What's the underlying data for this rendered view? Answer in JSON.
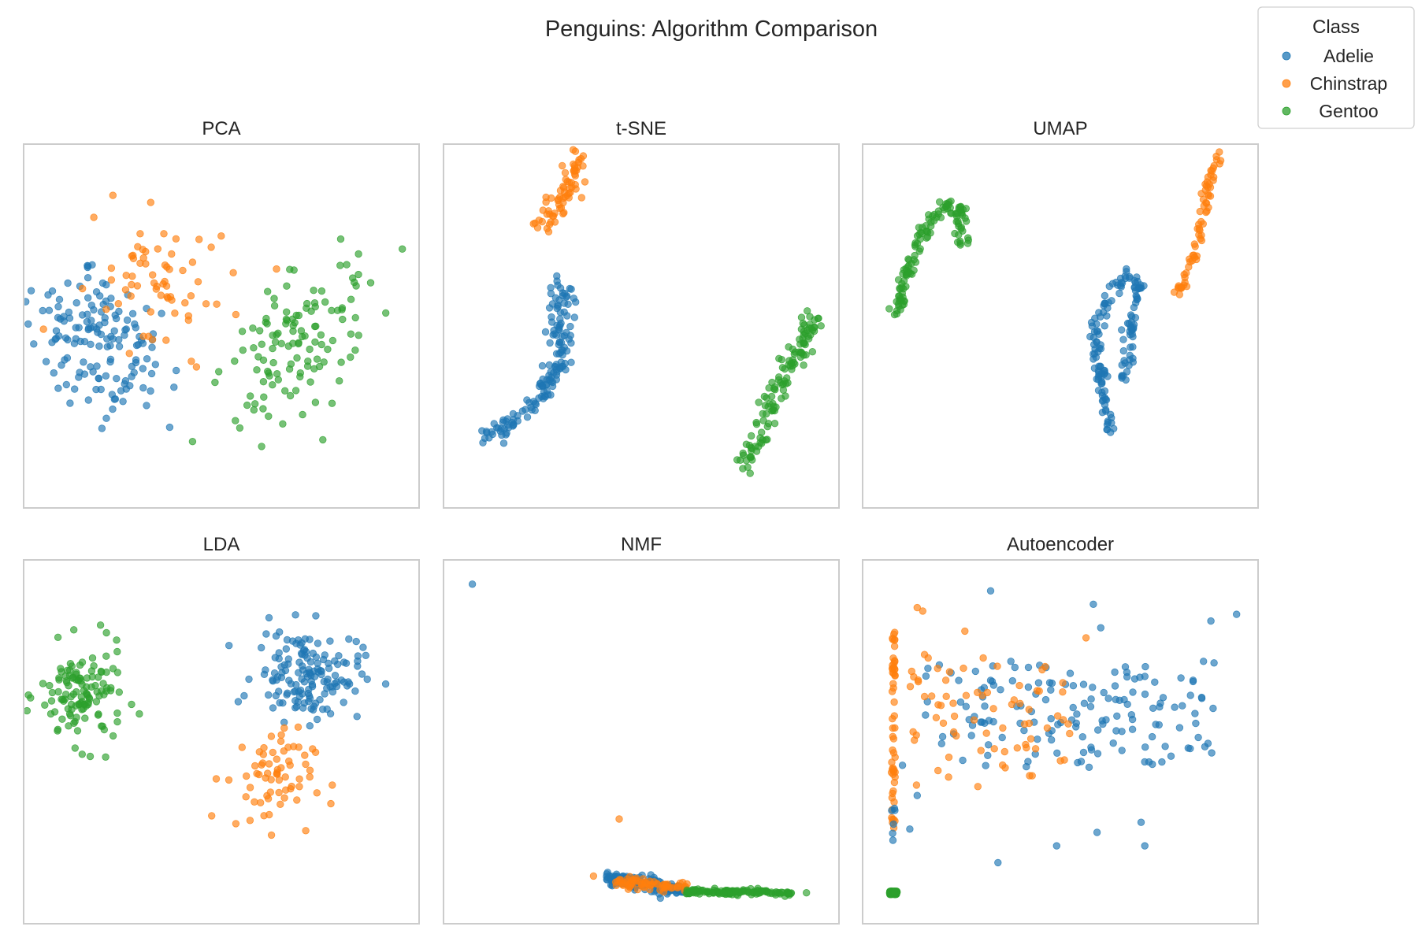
{
  "figure": {
    "title": "Penguins: Algorithm Comparison"
  },
  "legend": {
    "title": "Class",
    "placement": "top-right",
    "entries": [
      {
        "label": "Adelie",
        "color": "#1f77b4"
      },
      {
        "label": "Chinstrap",
        "color": "#ff7f0e"
      },
      {
        "label": "Gentoo",
        "color": "#2ca02c"
      }
    ]
  },
  "chart_data": [
    {
      "type": "scatter",
      "title": "PCA",
      "ticks": false,
      "grid": false,
      "xlim": [
        -3.2,
        3.4
      ],
      "ylim": [
        -3.0,
        3.0
      ],
      "clusters": [
        {
          "series": "Adelie",
          "n": 150,
          "center": [
            -2.1,
            -0.3
          ],
          "spread": [
            0.55,
            0.75
          ],
          "rotate": 45
        },
        {
          "series": "Chinstrap",
          "n": 68,
          "center": [
            -1.05,
            0.85
          ],
          "spread": [
            0.6,
            0.7
          ],
          "rotate": 45
        },
        {
          "series": "Gentoo",
          "n": 124,
          "center": [
            1.5,
            -0.3
          ],
          "spread": [
            0.9,
            0.45
          ],
          "rotate": 45
        }
      ]
    },
    {
      "type": "scatter",
      "title": "t-SNE",
      "ticks": false,
      "grid": false,
      "xlim": [
        -40,
        40
      ],
      "ylim": [
        -40,
        40
      ],
      "paths": [
        {
          "series": "Adelie",
          "n": 150,
          "width": 2.6,
          "points": [
            [
              -34,
              -27
            ],
            [
              -28,
              -23
            ],
            [
              -25,
              -20
            ],
            [
              -20,
              -13
            ],
            [
              -17,
              -8
            ],
            [
              -17,
              -4
            ],
            [
              -18,
              2
            ],
            [
              -17,
              7
            ],
            [
              -18,
              11
            ]
          ]
        },
        {
          "series": "Chinstrap",
          "n": 68,
          "width": 2.2,
          "points": [
            [
              -22,
              23
            ],
            [
              -19,
              28
            ],
            [
              -16,
              32
            ],
            [
              -15,
              36
            ],
            [
              -13,
              40
            ]
          ]
        },
        {
          "series": "Gentoo",
          "n": 124,
          "width": 2.6,
          "points": [
            [
              22,
              -33
            ],
            [
              26,
              -27
            ],
            [
              28,
              -18
            ],
            [
              33,
              -8
            ],
            [
              37,
              -1
            ],
            [
              38,
              4
            ]
          ]
        }
      ]
    },
    {
      "type": "scatter",
      "title": "UMAP",
      "ticks": false,
      "grid": false,
      "xlim": [
        -5,
        20
      ],
      "ylim": [
        -2,
        16
      ],
      "paths": [
        {
          "series": "Gentoo",
          "n": 124,
          "width": 0.45,
          "points": [
            [
              -3.8,
              7.3
            ],
            [
              -3.1,
              9.4
            ],
            [
              -2.4,
              11.3
            ],
            [
              -1.4,
              12.5
            ],
            [
              -0.2,
              13.4
            ],
            [
              0.8,
              13.0
            ],
            [
              0.7,
              11.4
            ]
          ]
        },
        {
          "series": "Adelie",
          "n": 150,
          "width": 0.4,
          "points": [
            [
              10.8,
              1.2
            ],
            [
              10.6,
              3.0
            ],
            [
              10.2,
              4.5
            ],
            [
              9.8,
              6.6
            ],
            [
              10.6,
              8.1
            ],
            [
              12.0,
              9.8
            ],
            [
              13.0,
              9.1
            ],
            [
              12.2,
              6.5
            ],
            [
              11.8,
              4.0
            ]
          ]
        },
        {
          "series": "Chinstrap",
          "n": 68,
          "width": 0.35,
          "points": [
            [
              15.3,
              8.7
            ],
            [
              16.3,
              10.2
            ],
            [
              17.3,
              12.8
            ],
            [
              17.6,
              14.8
            ],
            [
              18.4,
              16.3
            ]
          ]
        }
      ]
    },
    {
      "type": "scatter",
      "title": "LDA",
      "ticks": false,
      "grid": false,
      "xlim": [
        -7,
        7
      ],
      "ylim": [
        -6,
        5
      ],
      "clusters": [
        {
          "series": "Gentoo",
          "n": 124,
          "center": [
            -5.3,
            1.0
          ],
          "spread": [
            0.8,
            0.8
          ],
          "rotate": 0
        },
        {
          "series": "Adelie",
          "n": 150,
          "center": [
            3.3,
            1.7
          ],
          "spread": [
            1.0,
            0.75
          ],
          "rotate": 0
        },
        {
          "series": "Chinstrap",
          "n": 68,
          "center": [
            1.8,
            -1.7
          ],
          "spread": [
            0.85,
            0.8
          ],
          "rotate": 0
        }
      ]
    },
    {
      "type": "scatter",
      "title": "NMF",
      "ticks": false,
      "grid": false,
      "xlim": [
        0,
        1
      ],
      "ylim": [
        0,
        1
      ],
      "outliers": [
        {
          "series": "Adelie",
          "x": 0.04,
          "y": 0.97
        },
        {
          "series": "Chinstrap",
          "x": 0.44,
          "y": 0.27
        },
        {
          "series": "Chinstrap",
          "x": 0.37,
          "y": 0.1
        },
        {
          "series": "Gentoo",
          "x": 0.95,
          "y": 0.05
        }
      ],
      "bands": [
        {
          "series": "Adelie",
          "n": 150,
          "x": [
            0.4,
            0.62
          ],
          "y_start": 0.095,
          "y_end": 0.055,
          "jitter": 0.01
        },
        {
          "series": "Chinstrap",
          "n": 68,
          "x": [
            0.43,
            0.63
          ],
          "y_start": 0.085,
          "y_end": 0.065,
          "jitter": 0.008
        },
        {
          "series": "Gentoo",
          "n": 124,
          "x": [
            0.62,
            0.91
          ],
          "y_start": 0.055,
          "y_end": 0.05,
          "jitter": 0.004
        }
      ]
    },
    {
      "type": "scatter",
      "title": "Autoencoder",
      "ticks": false,
      "grid": false,
      "xlim": [
        0,
        10
      ],
      "ylim": [
        0,
        10
      ],
      "uniform": [
        {
          "series": "Adelie",
          "n": 150,
          "x": [
            1.3,
            9.2
          ],
          "y": [
            4.2,
            7.4
          ],
          "extra": [
            [
              3.1,
              9.5
            ],
            [
              5.9,
              9.1
            ],
            [
              6.1,
              8.4
            ],
            [
              9.1,
              8.6
            ],
            [
              9.8,
              8.8
            ],
            [
              8.9,
              7.4
            ],
            [
              3.3,
              1.4
            ],
            [
              4.9,
              1.9
            ],
            [
              6.0,
              2.3
            ],
            [
              7.2,
              2.6
            ],
            [
              7.3,
              1.9
            ],
            [
              0.9,
              2.4
            ],
            [
              0.7,
              4.3
            ],
            [
              1.1,
              3.4
            ]
          ]
        },
        {
          "series": "Chinstrap",
          "n": 68,
          "x": [
            0.9,
            5.3
          ],
          "y": [
            3.6,
            7.3
          ],
          "extra": [
            [
              1.1,
              9.0
            ],
            [
              1.25,
              8.9
            ],
            [
              2.4,
              8.3
            ],
            [
              5.7,
              8.1
            ],
            [
              1.3,
              7.6
            ],
            [
              1.4,
              7.5
            ],
            [
              2.9,
              7.5
            ],
            [
              0.95,
              7.1
            ]
          ]
        },
        {
          "series": "Chinstrap",
          "n": 55,
          "x": [
            0.4,
            0.5
          ],
          "y": [
            2.3,
            8.3
          ]
        },
        {
          "series": "Adelie",
          "n": 6,
          "x": [
            0.4,
            0.5
          ],
          "y": [
            2.0,
            3.4
          ]
        },
        {
          "series": "Gentoo",
          "n": 124,
          "x": [
            0.35,
            0.55
          ],
          "y": [
            0.45,
            0.55
          ]
        }
      ]
    }
  ]
}
